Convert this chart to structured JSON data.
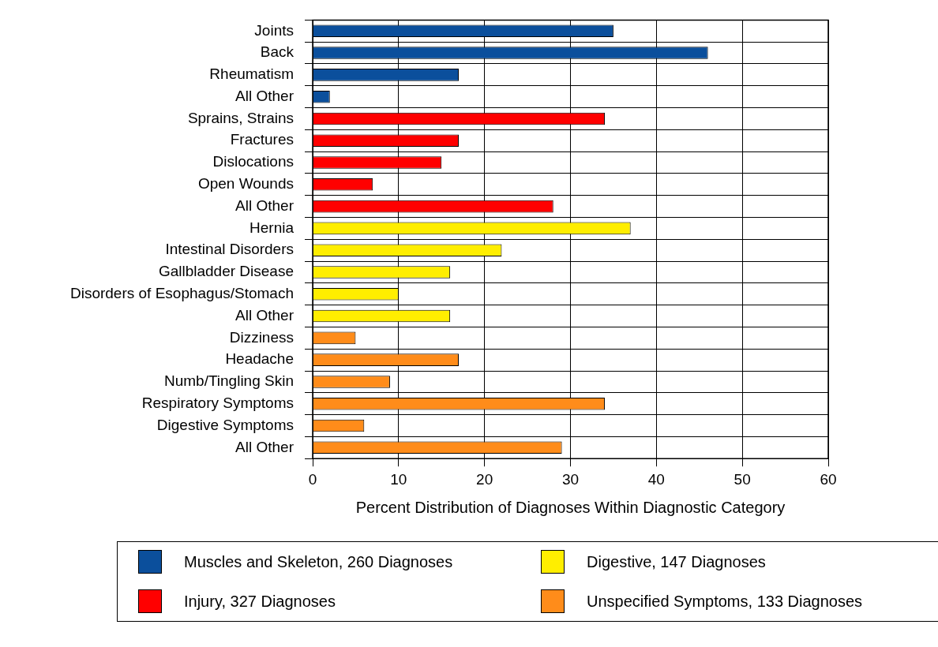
{
  "chart_data": {
    "type": "bar",
    "orientation": "horizontal",
    "xlabel": "Percent Distribution of Diagnoses Within Diagnostic Category",
    "categories": [
      "Joints",
      "Back",
      "Rheumatism",
      "All Other",
      "Sprains, Strains",
      "Fractures",
      "Dislocations",
      "Open Wounds",
      "All Other",
      "Hernia",
      "Intestinal Disorders",
      "Gallbladder Disease",
      "Disorders of Esophagus/Stomach",
      "All Other",
      "Dizziness",
      "Headache",
      "Numb/Tingling Skin",
      "Respiratory Symptoms",
      "Digestive Symptoms",
      "All Other"
    ],
    "series": [
      {
        "name": "Muscles and Skeleton, 260 Diagnoses",
        "color": "#0b4f9c",
        "values": [
          35,
          46,
          17,
          2,
          null,
          null,
          null,
          null,
          null,
          null,
          null,
          null,
          null,
          null,
          null,
          null,
          null,
          null,
          null,
          null
        ]
      },
      {
        "name": "Injury, 327 Diagnoses",
        "color": "#ff0000",
        "values": [
          null,
          null,
          null,
          null,
          34,
          17,
          15,
          7,
          28,
          null,
          null,
          null,
          null,
          null,
          null,
          null,
          null,
          null,
          null,
          null
        ]
      },
      {
        "name": "Digestive, 147 Diagnoses",
        "color": "#ffee00",
        "values": [
          null,
          null,
          null,
          null,
          null,
          null,
          null,
          null,
          null,
          37,
          22,
          16,
          10,
          16,
          null,
          null,
          null,
          null,
          null,
          null
        ]
      },
      {
        "name": "Unspecified Symptoms, 133 Diagnoses",
        "color": "#ff8c1a",
        "values": [
          null,
          null,
          null,
          null,
          null,
          null,
          null,
          null,
          null,
          null,
          null,
          null,
          null,
          null,
          5,
          17,
          9,
          34,
          6,
          29
        ]
      }
    ],
    "xlim": [
      0,
      60
    ],
    "xticks": [
      0,
      10,
      20,
      30,
      40,
      50,
      60
    ],
    "grid": true,
    "legend": "bottom"
  }
}
